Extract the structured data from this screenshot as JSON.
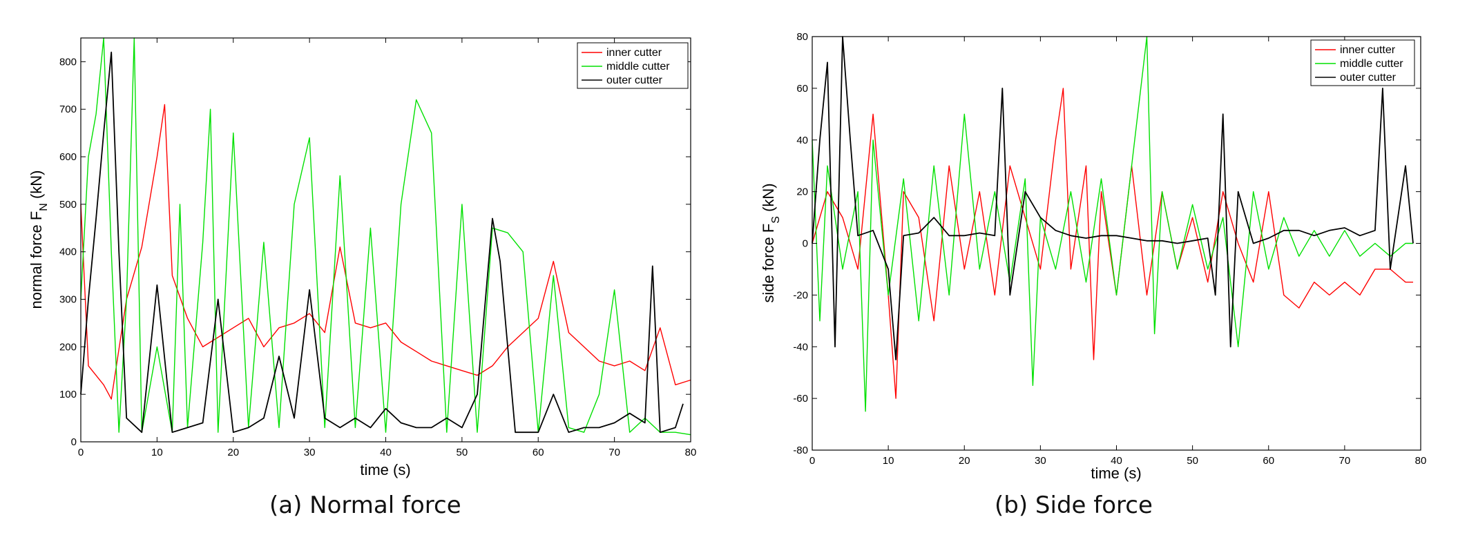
{
  "chart_data": [
    {
      "type": "line",
      "panel": "a",
      "caption": "(a) Normal force",
      "ylabel": "normal force F",
      "ylabel_sub": "N",
      "ylabel_unit": " (kN)",
      "xlabel": "time (s)",
      "xlim": [
        0,
        80
      ],
      "ylim": [
        0,
        850
      ],
      "xticks": [
        0,
        10,
        20,
        30,
        40,
        50,
        60,
        70,
        80
      ],
      "yticks": [
        0,
        100,
        200,
        300,
        400,
        500,
        600,
        700,
        800
      ],
      "legend_position": "top-right",
      "series": [
        {
          "name": "inner cutter",
          "color": "#ff0000",
          "points": [
            [
              0,
              500
            ],
            [
              1,
              160
            ],
            [
              3,
              120
            ],
            [
              4,
              90
            ],
            [
              6,
              300
            ],
            [
              8,
              410
            ],
            [
              10,
              600
            ],
            [
              11,
              710
            ],
            [
              12,
              350
            ],
            [
              14,
              260
            ],
            [
              16,
              200
            ],
            [
              18,
              220
            ],
            [
              20,
              240
            ],
            [
              22,
              260
            ],
            [
              24,
              200
            ],
            [
              26,
              240
            ],
            [
              28,
              250
            ],
            [
              30,
              270
            ],
            [
              32,
              230
            ],
            [
              34,
              410
            ],
            [
              36,
              250
            ],
            [
              38,
              240
            ],
            [
              40,
              250
            ],
            [
              42,
              210
            ],
            [
              44,
              190
            ],
            [
              46,
              170
            ],
            [
              48,
              160
            ],
            [
              50,
              150
            ],
            [
              52,
              140
            ],
            [
              54,
              160
            ],
            [
              56,
              200
            ],
            [
              58,
              230
            ],
            [
              60,
              260
            ],
            [
              62,
              380
            ],
            [
              64,
              230
            ],
            [
              66,
              200
            ],
            [
              68,
              170
            ],
            [
              70,
              160
            ],
            [
              72,
              170
            ],
            [
              74,
              150
            ],
            [
              76,
              240
            ],
            [
              78,
              120
            ],
            [
              80,
              130
            ]
          ]
        },
        {
          "name": "middle cutter",
          "color": "#00e000",
          "points": [
            [
              0,
              300
            ],
            [
              1,
              600
            ],
            [
              2,
              690
            ],
            [
              3,
              850
            ],
            [
              4,
              400
            ],
            [
              5,
              20
            ],
            [
              6,
              300
            ],
            [
              7,
              850
            ],
            [
              8,
              20
            ],
            [
              10,
              200
            ],
            [
              12,
              20
            ],
            [
              13,
              500
            ],
            [
              14,
              30
            ],
            [
              16,
              420
            ],
            [
              17,
              700
            ],
            [
              18,
              20
            ],
            [
              20,
              650
            ],
            [
              22,
              30
            ],
            [
              24,
              420
            ],
            [
              26,
              30
            ],
            [
              28,
              500
            ],
            [
              30,
              640
            ],
            [
              32,
              30
            ],
            [
              34,
              560
            ],
            [
              36,
              30
            ],
            [
              38,
              450
            ],
            [
              40,
              20
            ],
            [
              42,
              500
            ],
            [
              44,
              720
            ],
            [
              46,
              650
            ],
            [
              48,
              20
            ],
            [
              50,
              500
            ],
            [
              52,
              20
            ],
            [
              54,
              450
            ],
            [
              56,
              440
            ],
            [
              58,
              400
            ],
            [
              60,
              20
            ],
            [
              62,
              350
            ],
            [
              64,
              30
            ],
            [
              66,
              20
            ],
            [
              68,
              100
            ],
            [
              70,
              320
            ],
            [
              72,
              20
            ],
            [
              74,
              50
            ],
            [
              76,
              20
            ],
            [
              78,
              20
            ],
            [
              80,
              15
            ]
          ]
        },
        {
          "name": "outer cutter",
          "color": "#000000",
          "points": [
            [
              0,
              100
            ],
            [
              1,
              300
            ],
            [
              2,
              470
            ],
            [
              3,
              650
            ],
            [
              4,
              820
            ],
            [
              5,
              400
            ],
            [
              6,
              50
            ],
            [
              8,
              20
            ],
            [
              10,
              330
            ],
            [
              12,
              20
            ],
            [
              14,
              30
            ],
            [
              16,
              40
            ],
            [
              18,
              300
            ],
            [
              20,
              20
            ],
            [
              22,
              30
            ],
            [
              24,
              50
            ],
            [
              26,
              180
            ],
            [
              28,
              50
            ],
            [
              30,
              320
            ],
            [
              32,
              50
            ],
            [
              34,
              30
            ],
            [
              36,
              50
            ],
            [
              38,
              30
            ],
            [
              40,
              70
            ],
            [
              42,
              40
            ],
            [
              44,
              30
            ],
            [
              46,
              30
            ],
            [
              48,
              50
            ],
            [
              50,
              30
            ],
            [
              52,
              100
            ],
            [
              54,
              470
            ],
            [
              55,
              380
            ],
            [
              56,
              200
            ],
            [
              57,
              20
            ],
            [
              58,
              20
            ],
            [
              60,
              20
            ],
            [
              62,
              100
            ],
            [
              64,
              20
            ],
            [
              66,
              30
            ],
            [
              68,
              30
            ],
            [
              70,
              40
            ],
            [
              72,
              60
            ],
            [
              74,
              40
            ],
            [
              75,
              370
            ],
            [
              76,
              20
            ],
            [
              78,
              30
            ],
            [
              79,
              80
            ]
          ]
        }
      ]
    },
    {
      "type": "line",
      "panel": "b",
      "caption": "(b) Side force",
      "ylabel": "side force F",
      "ylabel_sub": "S",
      "ylabel_unit": " (kN)",
      "xlabel": "time (s)",
      "xlim": [
        0,
        80
      ],
      "ylim": [
        -80,
        80
      ],
      "xticks": [
        0,
        10,
        20,
        30,
        40,
        50,
        60,
        70,
        80
      ],
      "yticks": [
        -80,
        -60,
        -40,
        -20,
        0,
        20,
        40,
        60,
        80
      ],
      "legend_position": "top-right",
      "series": [
        {
          "name": "inner cutter",
          "color": "#ff0000",
          "points": [
            [
              0,
              0
            ],
            [
              2,
              20
            ],
            [
              4,
              10
            ],
            [
              6,
              -10
            ],
            [
              8,
              50
            ],
            [
              10,
              -20
            ],
            [
              11,
              -60
            ],
            [
              12,
              20
            ],
            [
              14,
              10
            ],
            [
              16,
              -30
            ],
            [
              18,
              30
            ],
            [
              20,
              -10
            ],
            [
              22,
              20
            ],
            [
              24,
              -20
            ],
            [
              26,
              30
            ],
            [
              28,
              10
            ],
            [
              30,
              -10
            ],
            [
              32,
              40
            ],
            [
              33,
              60
            ],
            [
              34,
              -10
            ],
            [
              36,
              30
            ],
            [
              37,
              -45
            ],
            [
              38,
              20
            ],
            [
              40,
              -20
            ],
            [
              42,
              30
            ],
            [
              44,
              -20
            ],
            [
              46,
              20
            ],
            [
              48,
              -10
            ],
            [
              50,
              10
            ],
            [
              52,
              -15
            ],
            [
              54,
              20
            ],
            [
              56,
              0
            ],
            [
              58,
              -15
            ],
            [
              60,
              20
            ],
            [
              62,
              -20
            ],
            [
              64,
              -25
            ],
            [
              66,
              -15
            ],
            [
              68,
              -20
            ],
            [
              70,
              -15
            ],
            [
              72,
              -20
            ],
            [
              74,
              -10
            ],
            [
              76,
              -10
            ],
            [
              78,
              -15
            ],
            [
              79,
              -15
            ]
          ]
        },
        {
          "name": "middle cutter",
          "color": "#00e000",
          "points": [
            [
              0,
              40
            ],
            [
              1,
              -30
            ],
            [
              2,
              30
            ],
            [
              4,
              -10
            ],
            [
              6,
              20
            ],
            [
              7,
              -65
            ],
            [
              8,
              40
            ],
            [
              10,
              -20
            ],
            [
              12,
              25
            ],
            [
              14,
              -30
            ],
            [
              16,
              30
            ],
            [
              18,
              -20
            ],
            [
              20,
              50
            ],
            [
              22,
              -10
            ],
            [
              24,
              20
            ],
            [
              26,
              -15
            ],
            [
              28,
              25
            ],
            [
              29,
              -55
            ],
            [
              30,
              10
            ],
            [
              32,
              -10
            ],
            [
              34,
              20
            ],
            [
              36,
              -15
            ],
            [
              38,
              25
            ],
            [
              40,
              -20
            ],
            [
              42,
              30
            ],
            [
              44,
              80
            ],
            [
              45,
              -35
            ],
            [
              46,
              20
            ],
            [
              48,
              -10
            ],
            [
              50,
              15
            ],
            [
              52,
              -10
            ],
            [
              54,
              10
            ],
            [
              56,
              -40
            ],
            [
              58,
              20
            ],
            [
              60,
              -10
            ],
            [
              62,
              10
            ],
            [
              64,
              -5
            ],
            [
              66,
              5
            ],
            [
              68,
              -5
            ],
            [
              70,
              5
            ],
            [
              72,
              -5
            ],
            [
              74,
              0
            ],
            [
              76,
              -5
            ],
            [
              78,
              0
            ],
            [
              79,
              0
            ]
          ]
        },
        {
          "name": "outer cutter",
          "color": "#000000",
          "points": [
            [
              0,
              0
            ],
            [
              1,
              40
            ],
            [
              2,
              70
            ],
            [
              3,
              -40
            ],
            [
              4,
              80
            ],
            [
              5,
              40
            ],
            [
              6,
              3
            ],
            [
              8,
              5
            ],
            [
              10,
              -10
            ],
            [
              11,
              -45
            ],
            [
              12,
              3
            ],
            [
              14,
              4
            ],
            [
              16,
              10
            ],
            [
              18,
              3
            ],
            [
              20,
              3
            ],
            [
              22,
              4
            ],
            [
              24,
              3
            ],
            [
              25,
              60
            ],
            [
              26,
              -20
            ],
            [
              28,
              20
            ],
            [
              30,
              10
            ],
            [
              32,
              5
            ],
            [
              34,
              3
            ],
            [
              36,
              2
            ],
            [
              38,
              3
            ],
            [
              40,
              3
            ],
            [
              42,
              2
            ],
            [
              44,
              1
            ],
            [
              46,
              1
            ],
            [
              48,
              0
            ],
            [
              50,
              1
            ],
            [
              52,
              2
            ],
            [
              53,
              -20
            ],
            [
              54,
              50
            ],
            [
              55,
              -40
            ],
            [
              56,
              20
            ],
            [
              58,
              0
            ],
            [
              60,
              2
            ],
            [
              62,
              5
            ],
            [
              64,
              5
            ],
            [
              66,
              3
            ],
            [
              68,
              5
            ],
            [
              70,
              6
            ],
            [
              72,
              3
            ],
            [
              74,
              5
            ],
            [
              75,
              60
            ],
            [
              76,
              -10
            ],
            [
              78,
              30
            ],
            [
              79,
              0
            ]
          ]
        }
      ]
    }
  ]
}
